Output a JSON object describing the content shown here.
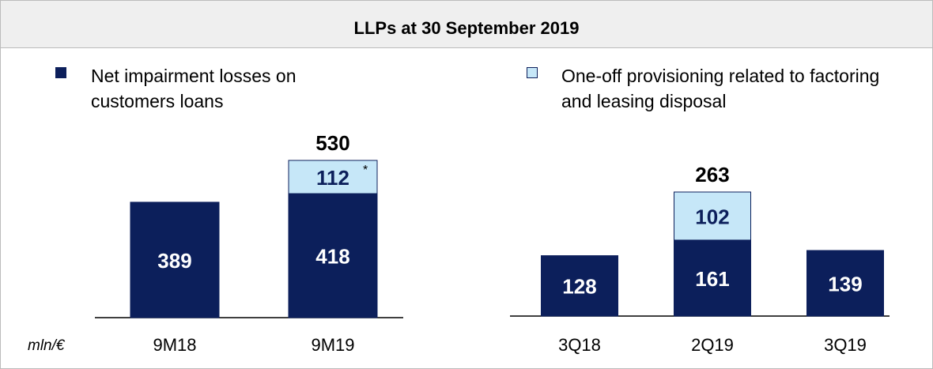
{
  "header": {
    "title": "LLPs at 30 September 2019"
  },
  "unit": "mln/€",
  "chart_data": [
    {
      "type": "bar",
      "stacked": true,
      "categories": [
        "9M18",
        "9M19"
      ],
      "series": [
        {
          "name": "Net impairment losses on customers loans",
          "color": "#0c1f5b",
          "values": [
            389,
            418
          ]
        },
        {
          "name": "One-off provisioning related to factoring and leasing disposal",
          "color": "#c6e7f8",
          "values": [
            null,
            112
          ]
        }
      ],
      "totals": [
        null,
        530
      ],
      "annotation": "*"
    },
    {
      "type": "bar",
      "stacked": true,
      "categories": [
        "3Q18",
        "2Q19",
        "3Q19"
      ],
      "series": [
        {
          "color": "#0c1f5b",
          "values": [
            128,
            161,
            139
          ]
        },
        {
          "color": "#c6e7f8",
          "values": [
            null,
            102,
            null
          ]
        }
      ],
      "totals": [
        null,
        263,
        null
      ]
    }
  ]
}
